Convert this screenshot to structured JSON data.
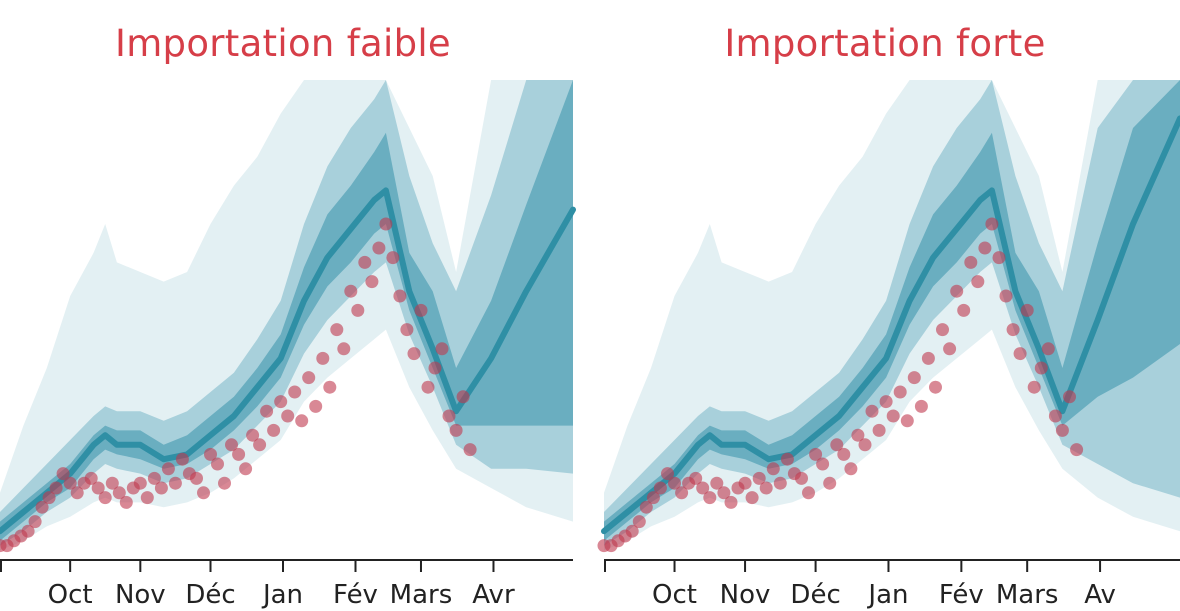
{
  "chart_data": [
    {
      "type": "area",
      "title": "Importation faible",
      "x_tick_labels": [
        "Oct",
        "Nov",
        "Déc",
        "Jan",
        "Fév",
        "Mars",
        "Avr"
      ],
      "xlim": [
        0,
        245
      ],
      "ylim": [
        0,
        100
      ],
      "grid": false,
      "legend": "none",
      "colors": {
        "outer_band": "#e3f0f3",
        "middle_band": "#a8d0db",
        "inner_band": "#6aaec0",
        "median_line": "#2f8fa5",
        "observations": "#c0394f",
        "title": "#d63e48"
      },
      "series": [
        {
          "role": "median",
          "x": [
            0,
            10,
            20,
            30,
            40,
            45,
            50,
            60,
            70,
            80,
            90,
            100,
            110,
            120,
            130,
            140,
            150,
            160,
            165,
            175,
            185,
            195,
            210,
            225,
            245
          ],
          "y": [
            6,
            10,
            14,
            18,
            24,
            26,
            24,
            24,
            21,
            22,
            26,
            30,
            36,
            42,
            54,
            63,
            69,
            75,
            77,
            56,
            44,
            31,
            42,
            56,
            73
          ]
        },
        {
          "role": "band_50",
          "x": [
            0,
            10,
            20,
            30,
            40,
            45,
            50,
            60,
            70,
            80,
            90,
            100,
            110,
            120,
            130,
            140,
            150,
            160,
            165,
            175,
            185,
            195,
            210,
            225,
            245
          ],
          "lower": [
            4,
            8,
            12,
            15,
            21,
            23,
            22,
            21,
            19,
            20,
            23,
            27,
            32,
            38,
            49,
            57,
            62,
            68,
            70,
            52,
            40,
            28,
            28,
            28,
            28
          ],
          "upper": [
            8,
            12,
            16,
            20,
            26,
            28,
            27,
            27,
            24,
            26,
            30,
            34,
            40,
            47,
            61,
            72,
            78,
            85,
            89,
            64,
            56,
            40,
            54,
            74,
            100
          ]
        },
        {
          "role": "band_80",
          "x": [
            0,
            10,
            20,
            30,
            40,
            45,
            50,
            60,
            70,
            80,
            90,
            100,
            110,
            120,
            130,
            140,
            150,
            160,
            165,
            175,
            185,
            195,
            210,
            225,
            245
          ],
          "lower": [
            3,
            6,
            10,
            13,
            18,
            20,
            19,
            18,
            16,
            17,
            20,
            23,
            28,
            33,
            43,
            50,
            55,
            60,
            62,
            47,
            36,
            24,
            19,
            19,
            18
          ],
          "upper": [
            10,
            15,
            20,
            25,
            30,
            32,
            31,
            31,
            29,
            31,
            35,
            39,
            46,
            54,
            70,
            82,
            90,
            96,
            100,
            80,
            66,
            56,
            76,
            100,
            100
          ]
        },
        {
          "role": "band_95",
          "x": [
            0,
            10,
            20,
            30,
            40,
            45,
            50,
            60,
            70,
            80,
            90,
            100,
            110,
            120,
            130,
            140,
            150,
            160,
            165,
            175,
            185,
            195,
            210,
            225,
            245
          ],
          "lower": [
            2,
            4,
            7,
            9,
            12,
            13,
            12,
            12,
            11,
            12,
            14,
            17,
            21,
            25,
            33,
            38,
            42,
            46,
            48,
            36,
            27,
            19,
            15,
            11,
            8
          ],
          "upper": [
            14,
            28,
            40,
            55,
            64,
            70,
            62,
            60,
            58,
            60,
            70,
            78,
            84,
            93,
            100,
            100,
            100,
            100,
            100,
            90,
            80,
            60,
            100,
            100,
            100
          ]
        },
        {
          "role": "observations",
          "x": [
            0,
            3,
            6,
            9,
            12,
            15,
            18,
            21,
            24,
            27,
            30,
            33,
            36,
            39,
            42,
            45,
            48,
            51,
            54,
            57,
            60,
            63,
            66,
            69,
            72,
            75,
            78,
            81,
            84,
            87,
            90,
            93,
            96,
            99,
            102,
            105,
            108,
            111,
            114,
            117,
            120,
            123,
            126,
            129,
            132,
            135,
            138,
            141,
            144,
            147,
            150,
            153,
            156,
            159,
            162,
            165,
            168,
            171,
            174,
            177,
            180,
            183,
            186,
            189,
            192,
            195,
            198,
            201
          ],
          "y": [
            3,
            3,
            4,
            5,
            6,
            8,
            11,
            13,
            15,
            18,
            16,
            14,
            16,
            17,
            15,
            13,
            16,
            14,
            12,
            15,
            16,
            13,
            17,
            15,
            19,
            16,
            21,
            18,
            17,
            14,
            22,
            20,
            16,
            24,
            22,
            19,
            26,
            24,
            31,
            27,
            33,
            30,
            35,
            29,
            38,
            32,
            42,
            36,
            48,
            44,
            56,
            52,
            62,
            58,
            65,
            70,
            63,
            55,
            48,
            43,
            52,
            36,
            40,
            44,
            30,
            27,
            34,
            23
          ]
        }
      ]
    },
    {
      "type": "area",
      "title": "Importation forte",
      "x_tick_labels": [
        "Oct",
        "Nov",
        "Déc",
        "Jan",
        "Fév",
        "Mars",
        "Av"
      ],
      "xlim": [
        0,
        245
      ],
      "ylim": [
        0,
        100
      ],
      "grid": false,
      "legend": "none",
      "colors": {
        "outer_band": "#e3f0f3",
        "middle_band": "#a8d0db",
        "inner_band": "#6aaec0",
        "median_line": "#2f8fa5",
        "observations": "#c0394f",
        "title": "#d63e48"
      },
      "series": [
        {
          "role": "median",
          "x": [
            0,
            10,
            20,
            30,
            40,
            45,
            50,
            60,
            70,
            80,
            90,
            100,
            110,
            120,
            130,
            140,
            150,
            160,
            165,
            175,
            185,
            195,
            210,
            225,
            245
          ],
          "y": [
            6,
            10,
            14,
            18,
            24,
            26,
            24,
            24,
            21,
            22,
            26,
            30,
            36,
            42,
            54,
            63,
            69,
            75,
            77,
            56,
            44,
            31,
            50,
            70,
            92
          ]
        },
        {
          "role": "band_50",
          "x": [
            0,
            10,
            20,
            30,
            40,
            45,
            50,
            60,
            70,
            80,
            90,
            100,
            110,
            120,
            130,
            140,
            150,
            160,
            165,
            175,
            185,
            195,
            210,
            225,
            245
          ],
          "lower": [
            4,
            8,
            12,
            15,
            21,
            23,
            22,
            21,
            19,
            20,
            23,
            27,
            32,
            38,
            49,
            57,
            62,
            68,
            70,
            52,
            40,
            28,
            34,
            38,
            45
          ],
          "upper": [
            8,
            12,
            16,
            20,
            26,
            28,
            27,
            27,
            24,
            26,
            30,
            34,
            40,
            47,
            61,
            72,
            78,
            85,
            89,
            64,
            56,
            40,
            66,
            90,
            100
          ]
        },
        {
          "role": "band_80",
          "x": [
            0,
            10,
            20,
            30,
            40,
            45,
            50,
            60,
            70,
            80,
            90,
            100,
            110,
            120,
            130,
            140,
            150,
            160,
            165,
            175,
            185,
            195,
            210,
            225,
            245
          ],
          "lower": [
            3,
            6,
            10,
            13,
            18,
            20,
            19,
            18,
            16,
            17,
            20,
            23,
            28,
            33,
            43,
            50,
            55,
            60,
            62,
            47,
            36,
            24,
            20,
            16,
            13
          ],
          "upper": [
            10,
            15,
            20,
            25,
            30,
            32,
            31,
            31,
            29,
            31,
            35,
            39,
            46,
            54,
            70,
            82,
            90,
            96,
            100,
            80,
            66,
            56,
            90,
            100,
            100
          ]
        },
        {
          "role": "band_95",
          "x": [
            0,
            10,
            20,
            30,
            40,
            45,
            50,
            60,
            70,
            80,
            90,
            100,
            110,
            120,
            130,
            140,
            150,
            160,
            165,
            175,
            185,
            195,
            210,
            225,
            245
          ],
          "lower": [
            2,
            4,
            7,
            9,
            12,
            13,
            12,
            12,
            11,
            12,
            14,
            17,
            21,
            25,
            33,
            38,
            42,
            46,
            48,
            36,
            27,
            19,
            13,
            9,
            6
          ],
          "upper": [
            14,
            28,
            40,
            55,
            64,
            70,
            62,
            60,
            58,
            60,
            70,
            78,
            84,
            93,
            100,
            100,
            100,
            100,
            100,
            90,
            80,
            60,
            100,
            100,
            100
          ]
        },
        {
          "role": "observations",
          "x": [
            0,
            3,
            6,
            9,
            12,
            15,
            18,
            21,
            24,
            27,
            30,
            33,
            36,
            39,
            42,
            45,
            48,
            51,
            54,
            57,
            60,
            63,
            66,
            69,
            72,
            75,
            78,
            81,
            84,
            87,
            90,
            93,
            96,
            99,
            102,
            105,
            108,
            111,
            114,
            117,
            120,
            123,
            126,
            129,
            132,
            135,
            138,
            141,
            144,
            147,
            150,
            153,
            156,
            159,
            162,
            165,
            168,
            171,
            174,
            177,
            180,
            183,
            186,
            189,
            192,
            195,
            198,
            201
          ],
          "y": [
            3,
            3,
            4,
            5,
            6,
            8,
            11,
            13,
            15,
            18,
            16,
            14,
            16,
            17,
            15,
            13,
            16,
            14,
            12,
            15,
            16,
            13,
            17,
            15,
            19,
            16,
            21,
            18,
            17,
            14,
            22,
            20,
            16,
            24,
            22,
            19,
            26,
            24,
            31,
            27,
            33,
            30,
            35,
            29,
            38,
            32,
            42,
            36,
            48,
            44,
            56,
            52,
            62,
            58,
            65,
            70,
            63,
            55,
            48,
            43,
            52,
            36,
            40,
            44,
            30,
            27,
            34,
            23
          ]
        }
      ]
    }
  ],
  "x_tick_positions": [
    30,
    60,
    90,
    121,
    152,
    180,
    211
  ]
}
